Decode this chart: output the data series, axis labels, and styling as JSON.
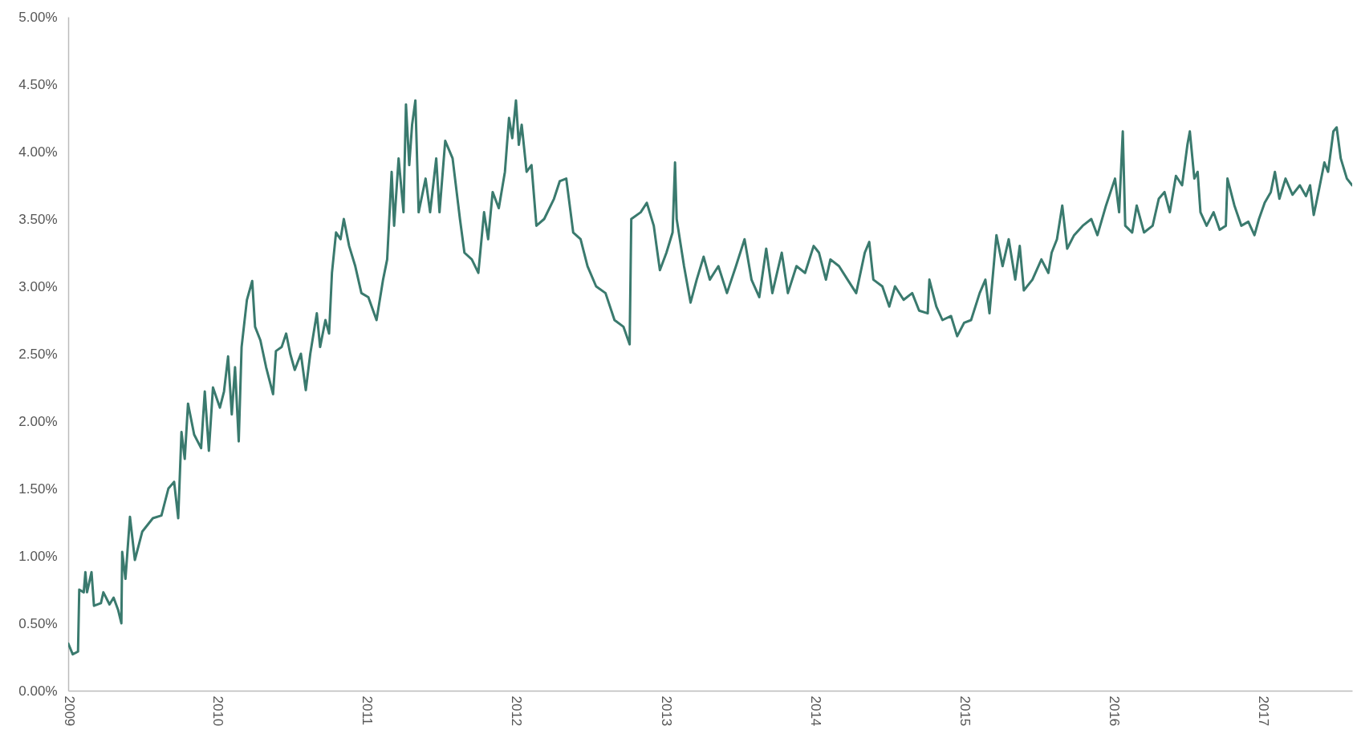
{
  "chart_data": {
    "type": "line",
    "x": [
      "2009-01-01",
      "2009-01-12",
      "2009-01-25",
      "2009-01-28",
      "2009-02-08",
      "2009-02-12",
      "2009-02-16",
      "2009-02-27",
      "2009-03-05",
      "2009-03-22",
      "2009-03-28",
      "2009-04-12",
      "2009-04-22",
      "2009-05-03",
      "2009-05-11",
      "2009-05-13",
      "2009-05-21",
      "2009-06-01",
      "2009-06-13",
      "2009-07-01",
      "2009-07-27",
      "2009-08-17",
      "2009-09-03",
      "2009-09-17",
      "2009-09-27",
      "2009-10-05",
      "2009-10-13",
      "2009-10-21",
      "2009-11-05",
      "2009-11-22",
      "2009-12-01",
      "2009-12-11",
      "2009-12-21",
      "2010-01-07",
      "2010-01-17",
      "2010-01-27",
      "2010-02-05",
      "2010-02-13",
      "2010-02-22",
      "2010-03-01",
      "2010-03-14",
      "2010-03-27",
      "2010-04-03",
      "2010-04-16",
      "2010-04-30",
      "2010-05-17",
      "2010-05-24",
      "2010-06-07",
      "2010-06-18",
      "2010-06-28",
      "2010-07-09",
      "2010-07-24",
      "2010-08-05",
      "2010-08-16",
      "2010-09-01",
      "2010-09-09",
      "2010-09-22",
      "2010-10-01",
      "2010-10-08",
      "2010-10-18",
      "2010-10-29",
      "2010-11-06",
      "2010-11-19",
      "2010-12-04",
      "2010-12-19",
      "2011-01-05",
      "2011-01-25",
      "2011-02-10",
      "2011-02-20",
      "2011-03-03",
      "2011-03-09",
      "2011-03-20",
      "2011-04-01",
      "2011-04-07",
      "2011-04-15",
      "2011-04-22",
      "2011-04-30",
      "2011-05-08",
      "2011-05-25",
      "2011-06-05",
      "2011-06-20",
      "2011-06-28",
      "2011-07-12",
      "2011-07-30",
      "2011-08-17",
      "2011-08-28",
      "2011-09-15",
      "2011-10-01",
      "2011-10-15",
      "2011-10-25",
      "2011-11-05",
      "2011-11-20",
      "2011-12-05",
      "2011-12-15",
      "2011-12-23",
      "2012-01-01",
      "2012-01-08",
      "2012-01-15",
      "2012-01-27",
      "2012-02-08",
      "2012-02-20",
      "2012-03-10",
      "2012-04-03",
      "2012-04-17",
      "2012-05-03",
      "2012-05-20",
      "2012-06-07",
      "2012-06-24",
      "2012-07-15",
      "2012-08-07",
      "2012-08-29",
      "2012-09-20",
      "2012-10-05",
      "2012-10-09",
      "2012-11-01",
      "2012-11-16",
      "2012-12-03",
      "2012-12-12",
      "2012-12-18",
      "2013-01-03",
      "2013-01-18",
      "2013-01-24",
      "2013-01-28",
      "2013-02-15",
      "2013-03-03",
      "2013-03-18",
      "2013-04-04",
      "2013-04-19",
      "2013-05-10",
      "2013-05-31",
      "2013-06-22",
      "2013-07-13",
      "2013-07-30",
      "2013-08-18",
      "2013-09-04",
      "2013-09-19",
      "2013-10-12",
      "2013-10-27",
      "2013-11-17",
      "2013-12-08",
      "2013-12-29",
      "2014-01-11",
      "2014-01-28",
      "2014-02-08",
      "2014-03-01",
      "2014-03-22",
      "2014-04-12",
      "2014-05-03",
      "2014-05-14",
      "2014-05-24",
      "2014-06-15",
      "2014-07-02",
      "2014-07-16",
      "2014-08-06",
      "2014-08-27",
      "2014-09-13",
      "2014-10-04",
      "2014-10-08",
      "2014-10-25",
      "2014-11-09",
      "2014-11-30",
      "2014-12-15",
      "2015-01-01",
      "2015-01-18",
      "2015-02-08",
      "2015-02-22",
      "2015-03-04",
      "2015-03-21",
      "2015-04-05",
      "2015-04-20",
      "2015-05-06",
      "2015-05-17",
      "2015-05-27",
      "2015-06-17",
      "2015-07-09",
      "2015-07-26",
      "2015-08-03",
      "2015-08-16",
      "2015-08-29",
      "2015-09-10",
      "2015-09-27",
      "2015-10-18",
      "2015-11-08",
      "2015-11-23",
      "2015-12-14",
      "2016-01-05",
      "2016-01-15",
      "2016-01-24",
      "2016-01-30",
      "2016-02-16",
      "2016-02-27",
      "2016-03-16",
      "2016-04-06",
      "2016-04-21",
      "2016-05-05",
      "2016-05-18",
      "2016-06-02",
      "2016-06-17",
      "2016-06-30",
      "2016-07-06",
      "2016-07-17",
      "2016-07-25",
      "2016-08-01",
      "2016-08-16",
      "2016-09-02",
      "2016-09-17",
      "2016-10-02",
      "2016-10-06",
      "2016-10-23",
      "2016-11-09",
      "2016-11-26",
      "2016-12-11",
      "2016-12-22",
      "2017-01-05",
      "2017-01-20",
      "2017-01-30",
      "2017-02-10",
      "2017-02-25",
      "2017-03-14",
      "2017-04-01",
      "2017-04-16",
      "2017-04-26",
      "2017-05-05",
      "2017-05-18",
      "2017-05-31",
      "2017-06-09",
      "2017-06-22",
      "2017-06-30",
      "2017-07-10",
      "2017-07-25",
      "2017-08-07"
    ],
    "series": [
      {
        "color": "#3a7a6e",
        "values": [
          0.35,
          0.27,
          0.29,
          0.75,
          0.73,
          0.88,
          0.73,
          0.88,
          0.63,
          0.65,
          0.73,
          0.64,
          0.69,
          0.6,
          0.5,
          1.03,
          0.83,
          1.29,
          0.97,
          1.18,
          1.28,
          1.3,
          1.5,
          1.55,
          1.28,
          1.92,
          1.72,
          2.13,
          1.9,
          1.8,
          2.22,
          1.78,
          2.25,
          2.1,
          2.22,
          2.48,
          2.05,
          2.4,
          1.85,
          2.55,
          2.9,
          3.04,
          2.7,
          2.6,
          2.4,
          2.2,
          2.52,
          2.55,
          2.65,
          2.5,
          2.38,
          2.5,
          2.23,
          2.5,
          2.8,
          2.55,
          2.75,
          2.65,
          3.1,
          3.4,
          3.35,
          3.5,
          3.3,
          3.15,
          2.95,
          2.92,
          2.75,
          3.05,
          3.2,
          3.85,
          3.45,
          3.95,
          3.55,
          4.35,
          3.9,
          4.2,
          4.38,
          3.55,
          3.8,
          3.55,
          3.95,
          3.55,
          4.08,
          3.95,
          3.5,
          3.25,
          3.2,
          3.1,
          3.55,
          3.35,
          3.7,
          3.58,
          3.85,
          4.25,
          4.1,
          4.38,
          4.05,
          4.2,
          3.85,
          3.9,
          3.45,
          3.5,
          3.65,
          3.78,
          3.8,
          3.4,
          3.35,
          3.15,
          3.0,
          2.95,
          2.75,
          2.7,
          2.57,
          3.5,
          3.55,
          3.62,
          3.45,
          3.25,
          3.12,
          3.25,
          3.4,
          3.92,
          3.5,
          3.15,
          2.88,
          3.05,
          3.22,
          3.05,
          3.15,
          2.95,
          3.15,
          3.35,
          3.05,
          2.92,
          3.28,
          2.95,
          3.25,
          2.95,
          3.15,
          3.1,
          3.3,
          3.25,
          3.05,
          3.2,
          3.15,
          3.05,
          2.95,
          3.25,
          3.33,
          3.05,
          3.0,
          2.85,
          3.0,
          2.9,
          2.95,
          2.82,
          2.8,
          3.05,
          2.85,
          2.75,
          2.78,
          2.63,
          2.73,
          2.75,
          2.95,
          3.05,
          2.8,
          3.38,
          3.15,
          3.35,
          3.05,
          3.3,
          2.97,
          3.05,
          3.2,
          3.1,
          3.25,
          3.35,
          3.6,
          3.28,
          3.38,
          3.45,
          3.5,
          3.38,
          3.6,
          3.8,
          3.55,
          4.15,
          3.45,
          3.4,
          3.6,
          3.4,
          3.45,
          3.65,
          3.7,
          3.55,
          3.82,
          3.75,
          4.05,
          4.15,
          3.8,
          3.85,
          3.55,
          3.45,
          3.55,
          3.42,
          3.45,
          3.8,
          3.6,
          3.45,
          3.48,
          3.38,
          3.5,
          3.62,
          3.7,
          3.85,
          3.65,
          3.8,
          3.68,
          3.75,
          3.67,
          3.75,
          3.53,
          3.72,
          3.92,
          3.85,
          4.15,
          4.18,
          3.95,
          3.8,
          3.75
        ]
      }
    ],
    "xlim": [
      "2009-01-01",
      "2017-08-07"
    ],
    "xticks": [
      "2009",
      "2010",
      "2011",
      "2012",
      "2013",
      "2014",
      "2015",
      "2016",
      "2017"
    ],
    "ylim": [
      0,
      5
    ],
    "yticks": [
      {
        "value": 0,
        "label": "0.00%"
      },
      {
        "value": 0.5,
        "label": "0.50%"
      },
      {
        "value": 1,
        "label": "1.00%"
      },
      {
        "value": 1.5,
        "label": "1.50%"
      },
      {
        "value": 2,
        "label": "2.00%"
      },
      {
        "value": 2.5,
        "label": "2.50%"
      },
      {
        "value": 3,
        "label": "3.00%"
      },
      {
        "value": 3.5,
        "label": "3.50%"
      },
      {
        "value": 4,
        "label": "4.00%"
      },
      {
        "value": 4.5,
        "label": "4.50%"
      },
      {
        "value": 5,
        "label": "5.00%"
      }
    ],
    "grid": false,
    "legend": false,
    "marker": "none",
    "line_style": "solid"
  }
}
